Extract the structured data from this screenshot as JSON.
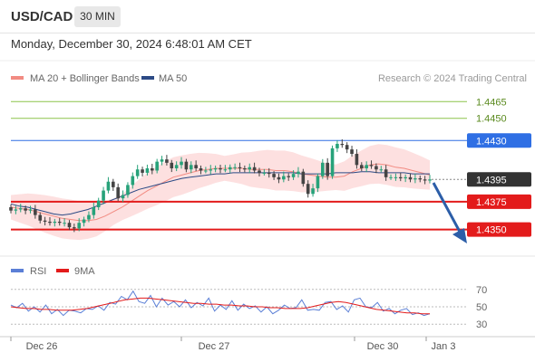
{
  "header": {
    "symbol": "USD/CAD",
    "timeframe_label": "30 MIN"
  },
  "timestamp": "Monday, December 30, 2024 6:48:01 AM CET",
  "legend": {
    "ma20_label": "MA 20 + Bollinger Bands",
    "ma50_label": "MA 50",
    "credit": "Research © 2024 Trading Central",
    "rsi_label": "RSI",
    "rsi_ma_label": "9MA"
  },
  "colors": {
    "ma20": "#f28b82",
    "ma50": "#2c4a85",
    "bollinger_fill": "#fde0e0",
    "resistance_green": "#8bc34a",
    "pivot_blue": "#2f6fe4",
    "support_red": "#e31b1b",
    "candle_up": "#27a27a",
    "candle_down": "#444444",
    "rsi": "#5b7fd6",
    "rsi_ma": "#e31b1b",
    "forecast_arrow": "#2c5ea8",
    "last_price_tag": "#333333"
  },
  "chart_data": [
    {
      "type": "candlestick",
      "title": "USD/CAD",
      "timeframe": "30 MIN",
      "ylim": [
        1.4335,
        1.4475
      ],
      "x_tick_labels": [
        "Dec 26",
        "Dec 27",
        "Dec 30",
        "Jan 3"
      ],
      "price_levels": [
        {
          "label": "1.4465",
          "value": 1.4465,
          "kind": "resistance",
          "color": "#8bc34a"
        },
        {
          "label": "1.4450",
          "value": 1.445,
          "kind": "resistance",
          "color": "#8bc34a"
        },
        {
          "label": "1.4430",
          "value": 1.443,
          "kind": "pivot",
          "color": "#2f6fe4"
        },
        {
          "label": "1.4395",
          "value": 1.4395,
          "kind": "last",
          "color": "#333333"
        },
        {
          "label": "1.4375",
          "value": 1.4375,
          "kind": "support",
          "color": "#e31b1b"
        },
        {
          "label": "1.4350",
          "value": 1.435,
          "kind": "support",
          "color": "#e31b1b"
        }
      ],
      "close": [
        1.4367,
        1.4368,
        1.4369,
        1.4367,
        1.4368,
        1.4363,
        1.4358,
        1.4357,
        1.4356,
        1.4357,
        1.4356,
        1.4356,
        1.4352,
        1.4351,
        1.4356,
        1.4359,
        1.4363,
        1.437,
        1.4376,
        1.4385,
        1.4393,
        1.4388,
        1.4378,
        1.4381,
        1.439,
        1.4398,
        1.4404,
        1.4401,
        1.4405,
        1.4403,
        1.4411,
        1.4413,
        1.441,
        1.4405,
        1.4408,
        1.4411,
        1.4404,
        1.4408,
        1.4405,
        1.4403,
        1.4403,
        1.4404,
        1.4405,
        1.4404,
        1.4404,
        1.4406,
        1.4406,
        1.4405,
        1.4404,
        1.4406,
        1.4403,
        1.4401,
        1.4401,
        1.44,
        1.4397,
        1.4395,
        1.4398,
        1.4397,
        1.44,
        1.4402,
        1.4391,
        1.4382,
        1.4387,
        1.4398,
        1.441,
        1.4398,
        1.4423,
        1.4427,
        1.4426,
        1.4422,
        1.4418,
        1.4408,
        1.4405,
        1.4408,
        1.4407,
        1.4404,
        1.4404,
        1.4397,
        1.4397,
        1.4397,
        1.4396,
        1.4397,
        1.4395,
        1.4396,
        1.4395,
        1.4394,
        1.4395
      ],
      "ma20": [
        1.437,
        1.4369,
        1.4368,
        1.4366,
        1.4364,
        1.4362,
        1.436,
        1.4359,
        1.4358,
        1.4358,
        1.4359,
        1.4362,
        1.4366,
        1.437,
        1.4375,
        1.438,
        1.4385,
        1.4389,
        1.4393,
        1.4397,
        1.4399,
        1.4401,
        1.4403,
        1.4404,
        1.4405,
        1.4405,
        1.4405,
        1.4405,
        1.4404,
        1.4404,
        1.4404,
        1.4403,
        1.4403,
        1.4402,
        1.44,
        1.4399,
        1.4398,
        1.4397,
        1.4397,
        1.4398,
        1.4402,
        1.4405,
        1.4408,
        1.4409,
        1.4408,
        1.4406,
        1.4405,
        1.4403,
        1.4401,
        1.4399
      ],
      "ma50": [
        1.4373,
        1.4371,
        1.437,
        1.4368,
        1.4366,
        1.4364,
        1.4363,
        1.4364,
        1.4366,
        1.4368,
        1.4371,
        1.4374,
        1.4377,
        1.438,
        1.4383,
        1.4386,
        1.4388,
        1.439,
        1.4392,
        1.4394,
        1.4396,
        1.4397,
        1.4398,
        1.4399,
        1.44,
        1.44,
        1.4401,
        1.4401,
        1.4401,
        1.4401,
        1.4401,
        1.4401,
        1.4401,
        1.4401,
        1.44,
        1.44,
        1.44,
        1.44,
        1.4401,
        1.4401,
        1.4401,
        1.4402,
        1.4402,
        1.4401,
        1.4401,
        1.4401,
        1.4401,
        1.44,
        1.44,
        1.44
      ],
      "forecast": {
        "from": 1.4395,
        "to": 1.435
      }
    },
    {
      "type": "line",
      "title": "RSI",
      "ylim": [
        25,
        75
      ],
      "y_ticks": [
        70,
        50,
        30
      ],
      "x_tick_labels": [
        "Dec 26",
        "Dec 27",
        "Dec 30",
        "Jan 3"
      ],
      "series": [
        {
          "name": "RSI",
          "values": [
            52,
            49,
            54,
            45,
            50,
            44,
            52,
            42,
            47,
            40,
            46,
            45,
            43,
            48,
            47,
            51,
            46,
            55,
            53,
            62,
            58,
            68,
            56,
            54,
            63,
            50,
            60,
            52,
            56,
            50,
            58,
            49,
            55,
            51,
            60,
            45,
            52,
            47,
            57,
            46,
            53,
            48,
            51,
            44,
            50,
            42,
            46,
            52,
            48,
            49,
            58,
            46,
            47,
            46,
            55,
            56,
            47,
            51,
            44,
            58,
            60,
            50,
            49,
            55,
            45,
            48,
            42,
            46,
            48,
            41,
            43,
            40,
            42
          ],
          "x_start": 0,
          "x_end": 100
        },
        {
          "name": "9MA",
          "values": [
            50,
            49,
            48,
            48,
            47,
            47,
            46,
            46,
            46,
            47,
            48,
            50,
            52,
            54,
            56,
            58,
            59,
            60,
            60,
            59,
            58,
            57,
            56,
            55,
            54,
            54,
            53,
            53,
            52,
            52,
            51,
            51,
            50,
            50,
            49,
            49,
            48,
            48,
            48,
            49,
            51,
            53,
            55,
            56,
            55,
            53,
            51,
            49,
            47,
            46,
            45,
            44,
            43,
            43,
            42,
            42
          ],
          "x_start": 0,
          "x_end": 100
        }
      ]
    }
  ]
}
